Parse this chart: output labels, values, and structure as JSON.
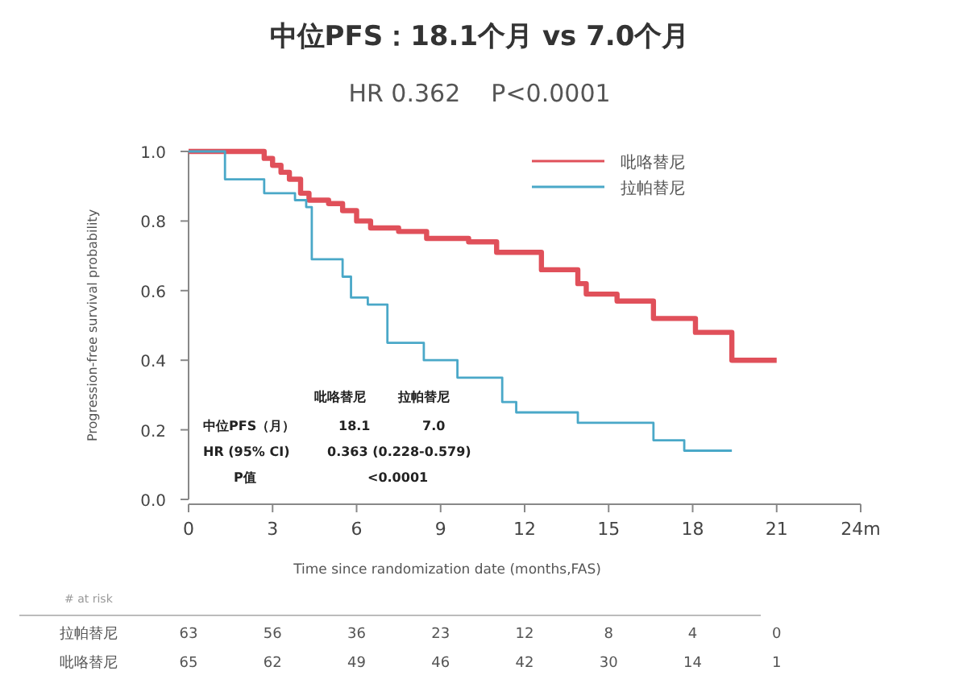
{
  "chart_data": {
    "type": "step",
    "title": "中位PFS：18.1个月 vs 7.0个月",
    "subtitle": "HR 0.362    P<0.0001",
    "xlabel": "Time since randomization date (months,FAS)",
    "ylabel": "Progression-free survival probability",
    "series": [
      {
        "name": "吡咯替尼",
        "color": "#e0505a",
        "x": [
          0,
          2.7,
          3.0,
          3.3,
          3.6,
          4.0,
          4.3,
          5.0,
          5.5,
          6.0,
          6.5,
          7.5,
          8.5,
          10.0,
          11.0,
          12.6,
          13.9,
          14.2,
          15.3,
          16.6,
          18.1,
          19.4,
          21.0
        ],
        "values": [
          1.0,
          0.98,
          0.96,
          0.94,
          0.92,
          0.88,
          0.86,
          0.85,
          0.83,
          0.8,
          0.78,
          0.77,
          0.75,
          0.74,
          0.71,
          0.66,
          0.62,
          0.59,
          0.57,
          0.52,
          0.48,
          0.4,
          0.4
        ]
      },
      {
        "name": "拉帕替尼",
        "color": "#4aa8c8",
        "x": [
          0,
          1.3,
          2.7,
          3.8,
          4.2,
          4.4,
          5.5,
          5.8,
          6.4,
          7.1,
          8.4,
          9.6,
          11.2,
          11.7,
          13.9,
          16.6,
          17.7,
          19.4
        ],
        "values": [
          1.0,
          0.92,
          0.88,
          0.86,
          0.84,
          0.69,
          0.64,
          0.58,
          0.56,
          0.45,
          0.4,
          0.35,
          0.28,
          0.25,
          0.22,
          0.17,
          0.14,
          0.14
        ]
      }
    ],
    "xlim": [
      0,
      24
    ],
    "xticks": [
      0,
      3,
      6,
      9,
      12,
      15,
      18,
      21,
      {
        "value": 24,
        "label": "24m"
      }
    ],
    "ylim": [
      0,
      1
    ],
    "yticks": [
      {
        "value": 0,
        "label": "0.0"
      },
      {
        "value": 0.2,
        "label": "0.2"
      },
      {
        "value": 0.4,
        "label": "0.4"
      },
      {
        "value": 0.6,
        "label": "0.6"
      },
      {
        "value": 0.8,
        "label": "0.8"
      },
      {
        "value": 1,
        "label": "1.0"
      }
    ],
    "grid": false,
    "legend": "top right",
    "marker": "none",
    "line_style": "solid",
    "annotations": [
      "吡咯替尼 拉帕替尼",
      "中位PFS（月） 18.1 7.0",
      "HR (95% CI) 0.363 (0.228-0.579)",
      "P值 <0.0001",
      "# at risk",
      "拉帕替尼 63 56 36 23 12 8 4 0",
      "吡咯替尼 65 62 49 46 42 30 14 1"
    ]
  }
}
